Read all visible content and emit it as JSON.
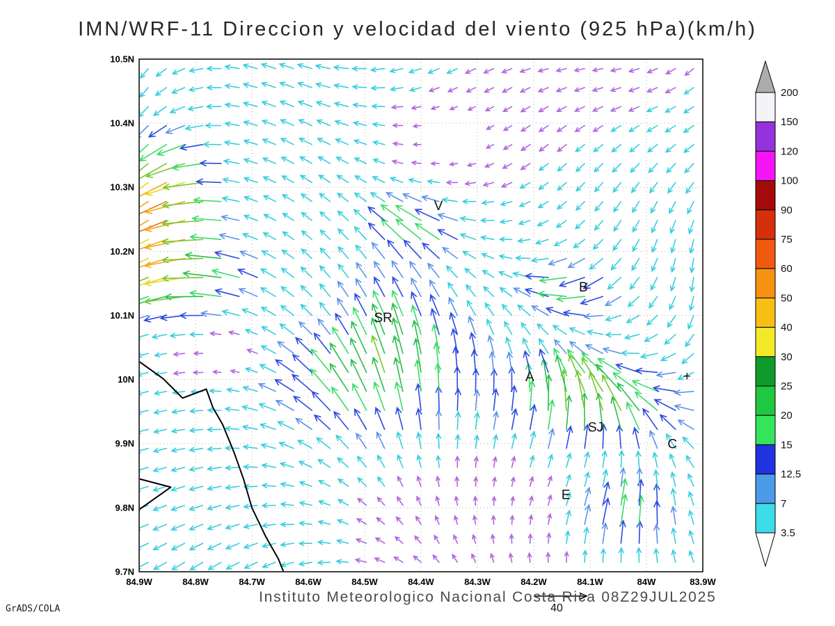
{
  "title": "IMN/WRF-11 Direccion y velocidad del viento (925 hPa)(km/h)",
  "footer": "Instituto Meteorologico Nacional Costa Rica 08Z29JUL2025",
  "credit": "GrADS/COLA",
  "reference_vector": {
    "label": "40",
    "speed": 40
  },
  "chart_data": {
    "type": "vector_field",
    "title": "IMN/WRF-11 Direccion y velocidad del viento (925 hPa)(km/h)",
    "units": "km/h",
    "pressure_level": "925 hPa",
    "valid_time": "08Z29JUL2025",
    "lon_range": [
      -84.9,
      -83.9
    ],
    "lat_range": [
      9.7,
      10.5
    ],
    "grid_on": true,
    "x_ticks": {
      "labels": [
        "84.9W",
        "84.8W",
        "84.7W",
        "84.6W",
        "84.5W",
        "84.4W",
        "84.3W",
        "84.2W",
        "84.1W",
        "84W",
        "83.9W"
      ],
      "values": [
        -84.9,
        -84.8,
        -84.7,
        -84.6,
        -84.5,
        -84.4,
        -84.3,
        -84.2,
        -84.1,
        -84.0,
        -83.9
      ]
    },
    "y_ticks": {
      "labels": [
        "10.5N",
        "10.4N",
        "10.3N",
        "10.2N",
        "10.1N",
        "10N",
        "9.9N",
        "9.8N",
        "9.7N"
      ],
      "values": [
        10.5,
        10.4,
        10.3,
        10.2,
        10.1,
        10.0,
        9.9,
        9.8,
        9.7
      ]
    },
    "colorbar": {
      "position": "right",
      "labels": [
        "200",
        "150",
        "120",
        "100",
        "90",
        "75",
        "60",
        "50",
        "40",
        "30",
        "25",
        "20",
        "15",
        "12.5",
        "7",
        "3.5"
      ],
      "segment_colors": [
        "#F4F4F8",
        "#9632DC",
        "#F414F4",
        "#A40A0A",
        "#D4300C",
        "#F05A10",
        "#F69112",
        "#F8BE14",
        "#F2EA28",
        "#0F9A2C",
        "#1FC83E",
        "#36E45C",
        "#2133E0",
        "#4C9BE8",
        "#3CDCE9"
      ],
      "over_color": "#ACACAC",
      "under_color": "#FFFFFF"
    },
    "arrow_scale": {
      "levels": [
        3.5,
        7,
        12.5,
        15,
        20,
        25,
        30,
        40,
        50,
        60,
        75,
        90
      ],
      "colors": [
        "#B066E0",
        "#38CEDC",
        "#5B93EA",
        "#2B49E0",
        "#3BDC68",
        "#29BE4C",
        "#74C92E",
        "#E6D622",
        "#F2A912",
        "#F0700F",
        "#E8400E",
        "#D41A12"
      ]
    },
    "stations": [
      {
        "label": "V",
        "lon": -84.369,
        "lat": 10.271
      },
      {
        "label": "B",
        "lon": -84.112,
        "lat": 10.144
      },
      {
        "label": "SR",
        "lon": -84.467,
        "lat": 10.096
      },
      {
        "label": "A",
        "lon": -84.207,
        "lat": 10.004
      },
      {
        "label": "+",
        "lon": -83.928,
        "lat": 10.005
      },
      {
        "label": "SJ",
        "lon": -84.09,
        "lat": 9.925
      },
      {
        "label": "C",
        "lon": -83.954,
        "lat": 9.899
      },
      {
        "label": "E",
        "lon": -84.143,
        "lat": 9.82
      }
    ],
    "coastline": [
      [
        -84.9,
        10.028
      ],
      [
        -84.857,
        10.001
      ],
      [
        -84.823,
        9.971
      ],
      [
        -84.781,
        9.985
      ],
      [
        -84.769,
        9.956
      ],
      [
        -84.752,
        9.93
      ],
      [
        -84.732,
        9.887
      ],
      [
        -84.715,
        9.845
      ],
      [
        -84.7,
        9.8
      ],
      [
        -84.675,
        9.754
      ],
      [
        -84.653,
        9.72
      ],
      [
        -84.643,
        9.698
      ]
    ],
    "peninsula": [
      [
        -84.9,
        9.845
      ],
      [
        -84.844,
        9.832
      ],
      [
        -84.9,
        9.797
      ]
    ],
    "field_model": {
      "grid": {
        "nx": 31,
        "ny": 27
      },
      "speed": {
        "base": 4.5,
        "amp": 5.5,
        "wave": [
          5.3,
          2.1,
          1.1,
          3.1,
          -1.7,
          0.4
        ],
        "bumps": [
          [
            0.05,
            0.7,
            0.055,
            0.085,
            58
          ],
          [
            0.1,
            0.57,
            0.07,
            0.05,
            22
          ],
          [
            0.43,
            0.4,
            0.12,
            0.1,
            25
          ],
          [
            0.5,
            0.66,
            0.055,
            0.045,
            17
          ],
          [
            0.8,
            0.32,
            0.1,
            0.06,
            28
          ],
          [
            0.77,
            0.55,
            0.055,
            0.045,
            15
          ],
          [
            0.86,
            0.1,
            0.06,
            0.045,
            17
          ],
          [
            0.34,
            0.47,
            0.05,
            0.05,
            -8
          ],
          [
            0.55,
            0.85,
            0.07,
            0.06,
            -6
          ],
          [
            0.17,
            0.42,
            0.05,
            0.045,
            -7
          ]
        ]
      },
      "direction": {
        "base": 3.1416,
        "terms": [
          [
            1.05,
            4.6,
            1.9,
            0.7,
            0
          ],
          [
            0.85,
            2.4,
            3.3,
            1.9,
            1
          ],
          [
            0.55,
            9.1,
            0.0,
            3.0,
            2
          ]
        ]
      }
    }
  }
}
